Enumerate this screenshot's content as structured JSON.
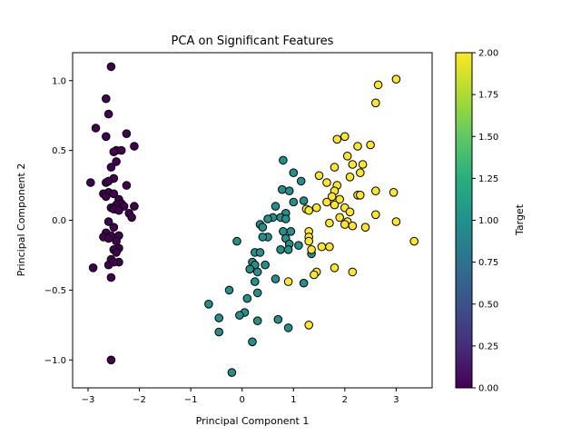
{
  "chart_data": {
    "type": "scatter",
    "title": "PCA on Significant Features",
    "xlabel": "Principal Component 1",
    "ylabel": "Principal Component 2",
    "xlim": [
      -3.3,
      3.7
    ],
    "ylim": [
      -1.2,
      1.2
    ],
    "xticks": [
      -3,
      -2,
      -1,
      0,
      1,
      2,
      3
    ],
    "xtick_labels": [
      "−3",
      "−2",
      "−1",
      "0",
      "1",
      "2",
      "3"
    ],
    "yticks": [
      -1.0,
      -0.5,
      0.0,
      0.5,
      1.0
    ],
    "ytick_labels": [
      "−1.0",
      "−0.5",
      "0.0",
      "0.5",
      "1.0"
    ],
    "grid": false,
    "colorbar": {
      "label": "Target",
      "colormap": "viridis",
      "range": [
        0.0,
        2.0
      ],
      "ticks": [
        0.0,
        0.25,
        0.5,
        0.75,
        1.0,
        1.25,
        1.5,
        1.75,
        2.0
      ],
      "tick_labels": [
        "0.00",
        "0.25",
        "0.50",
        "0.75",
        "1.00",
        "1.25",
        "1.50",
        "1.75",
        "2.00"
      ]
    },
    "colors": {
      "0": "#440154",
      "1": "#21918c",
      "2": "#fde725"
    },
    "points": [
      [
        -2.55,
        1.1,
        0
      ],
      [
        -2.65,
        0.87,
        0
      ],
      [
        -2.6,
        0.76,
        0
      ],
      [
        -2.85,
        0.66,
        0
      ],
      [
        -2.65,
        0.6,
        0
      ],
      [
        -2.25,
        0.62,
        0
      ],
      [
        -2.45,
        0.5,
        0
      ],
      [
        -2.35,
        0.5,
        0
      ],
      [
        -2.5,
        0.49,
        0
      ],
      [
        -2.1,
        0.53,
        0
      ],
      [
        -2.45,
        0.42,
        0
      ],
      [
        -2.55,
        0.38,
        0
      ],
      [
        -2.5,
        0.3,
        0
      ],
      [
        -2.65,
        0.27,
        0
      ],
      [
        -2.6,
        0.28,
        0
      ],
      [
        -2.95,
        0.27,
        0
      ],
      [
        -2.25,
        0.25,
        0
      ],
      [
        -2.7,
        0.19,
        0
      ],
      [
        -2.6,
        0.2,
        0
      ],
      [
        -2.5,
        0.19,
        0
      ],
      [
        -2.65,
        0.17,
        0
      ],
      [
        -2.4,
        0.15,
        0
      ],
      [
        -2.35,
        0.12,
        0
      ],
      [
        -2.45,
        0.11,
        0
      ],
      [
        -2.3,
        0.1,
        0
      ],
      [
        -2.55,
        0.09,
        0
      ],
      [
        -2.5,
        0.08,
        0
      ],
      [
        -2.1,
        0.1,
        0
      ],
      [
        -2.4,
        0.07,
        0
      ],
      [
        -2.2,
        0.05,
        0
      ],
      [
        -2.6,
        -0.01,
        0
      ],
      [
        -2.15,
        0.02,
        0
      ],
      [
        -2.5,
        -0.05,
        0
      ],
      [
        -2.65,
        -0.09,
        0
      ],
      [
        -2.7,
        -0.12,
        0
      ],
      [
        -2.55,
        -0.11,
        0
      ],
      [
        -2.4,
        -0.11,
        0
      ],
      [
        -2.6,
        -0.13,
        0
      ],
      [
        -2.45,
        -0.15,
        0
      ],
      [
        -2.4,
        -0.2,
        0
      ],
      [
        -2.5,
        -0.21,
        0
      ],
      [
        -2.45,
        -0.23,
        0
      ],
      [
        -2.55,
        -0.28,
        0
      ],
      [
        -2.4,
        -0.3,
        0
      ],
      [
        -2.6,
        -0.32,
        0
      ],
      [
        -2.5,
        -0.3,
        0
      ],
      [
        -2.9,
        -0.34,
        0
      ],
      [
        -2.55,
        -0.41,
        0
      ],
      [
        -2.55,
        -1.0,
        0
      ],
      [
        0.8,
        0.43,
        1
      ],
      [
        1.0,
        0.34,
        1
      ],
      [
        1.15,
        0.28,
        1
      ],
      [
        0.78,
        0.22,
        1
      ],
      [
        0.92,
        0.21,
        1
      ],
      [
        1.2,
        0.14,
        1
      ],
      [
        1.0,
        0.13,
        1
      ],
      [
        0.65,
        0.1,
        1
      ],
      [
        0.85,
        0.05,
        1
      ],
      [
        0.6,
        0.02,
        1
      ],
      [
        0.75,
        0.02,
        1
      ],
      [
        0.85,
        0.01,
        1
      ],
      [
        0.5,
        0.01,
        1
      ],
      [
        0.35,
        -0.03,
        1
      ],
      [
        0.4,
        -0.05,
        1
      ],
      [
        0.8,
        -0.08,
        1
      ],
      [
        0.95,
        -0.08,
        1
      ],
      [
        0.85,
        -0.13,
        1
      ],
      [
        0.5,
        -0.12,
        1
      ],
      [
        0.4,
        -0.12,
        1
      ],
      [
        0.92,
        -0.17,
        1
      ],
      [
        1.1,
        -0.18,
        1
      ],
      [
        0.75,
        -0.21,
        1
      ],
      [
        0.9,
        -0.21,
        1
      ],
      [
        -0.1,
        -0.15,
        1
      ],
      [
        0.25,
        -0.23,
        1
      ],
      [
        0.35,
        -0.23,
        1
      ],
      [
        1.35,
        -0.24,
        1
      ],
      [
        0.2,
        -0.3,
        1
      ],
      [
        0.25,
        -0.32,
        1
      ],
      [
        0.45,
        -0.32,
        1
      ],
      [
        0.15,
        -0.35,
        1
      ],
      [
        0.3,
        -0.37,
        1
      ],
      [
        -0.25,
        -0.5,
        1
      ],
      [
        0.65,
        -0.42,
        1
      ],
      [
        0.25,
        -0.44,
        1
      ],
      [
        1.2,
        -0.45,
        1
      ],
      [
        0.3,
        -0.52,
        1
      ],
      [
        0.1,
        -0.56,
        1
      ],
      [
        -0.65,
        -0.6,
        1
      ],
      [
        0.05,
        -0.66,
        1
      ],
      [
        -0.05,
        -0.68,
        1
      ],
      [
        -0.45,
        -0.7,
        1
      ],
      [
        0.3,
        -0.72,
        1
      ],
      [
        0.7,
        -0.71,
        1
      ],
      [
        0.9,
        -0.77,
        1
      ],
      [
        -0.45,
        -0.8,
        1
      ],
      [
        0.2,
        -0.87,
        1
      ],
      [
        -0.2,
        -1.09,
        1
      ],
      [
        3.0,
        1.01,
        2
      ],
      [
        2.65,
        0.97,
        2
      ],
      [
        2.6,
        0.84,
        2
      ],
      [
        2.0,
        0.6,
        2
      ],
      [
        1.85,
        0.58,
        2
      ],
      [
        2.25,
        0.53,
        2
      ],
      [
        2.5,
        0.54,
        2
      ],
      [
        2.05,
        0.46,
        2
      ],
      [
        2.35,
        0.4,
        2
      ],
      [
        2.15,
        0.4,
        2
      ],
      [
        1.8,
        0.38,
        2
      ],
      [
        2.3,
        0.34,
        2
      ],
      [
        2.1,
        0.31,
        2
      ],
      [
        1.5,
        0.32,
        2
      ],
      [
        1.65,
        0.27,
        2
      ],
      [
        1.85,
        0.25,
        2
      ],
      [
        1.8,
        0.21,
        2
      ],
      [
        2.6,
        0.21,
        2
      ],
      [
        2.95,
        0.2,
        2
      ],
      [
        2.25,
        0.18,
        2
      ],
      [
        2.3,
        0.18,
        2
      ],
      [
        1.75,
        0.17,
        2
      ],
      [
        1.9,
        0.15,
        2
      ],
      [
        1.65,
        0.13,
        2
      ],
      [
        1.8,
        0.11,
        2
      ],
      [
        2.0,
        0.09,
        2
      ],
      [
        1.45,
        0.09,
        2
      ],
      [
        1.25,
        0.08,
        2
      ],
      [
        1.3,
        0.07,
        2
      ],
      [
        2.1,
        0.06,
        2
      ],
      [
        2.6,
        0.04,
        2
      ],
      [
        1.9,
        0.02,
        2
      ],
      [
        2.05,
        -0.01,
        2
      ],
      [
        3.0,
        -0.01,
        2
      ],
      [
        1.7,
        -0.02,
        2
      ],
      [
        2.0,
        -0.03,
        2
      ],
      [
        2.15,
        -0.04,
        2
      ],
      [
        2.4,
        -0.05,
        2
      ],
      [
        1.3,
        -0.08,
        2
      ],
      [
        1.3,
        -0.12,
        2
      ],
      [
        1.3,
        -0.15,
        2
      ],
      [
        3.35,
        -0.15,
        2
      ],
      [
        1.55,
        -0.19,
        2
      ],
      [
        1.35,
        -0.21,
        2
      ],
      [
        1.7,
        -0.19,
        2
      ],
      [
        1.8,
        -0.34,
        2
      ],
      [
        2.15,
        -0.37,
        2
      ],
      [
        1.45,
        -0.37,
        2
      ],
      [
        1.4,
        -0.39,
        2
      ],
      [
        0.9,
        -0.44,
        2
      ],
      [
        1.3,
        -0.75,
        2
      ]
    ]
  }
}
